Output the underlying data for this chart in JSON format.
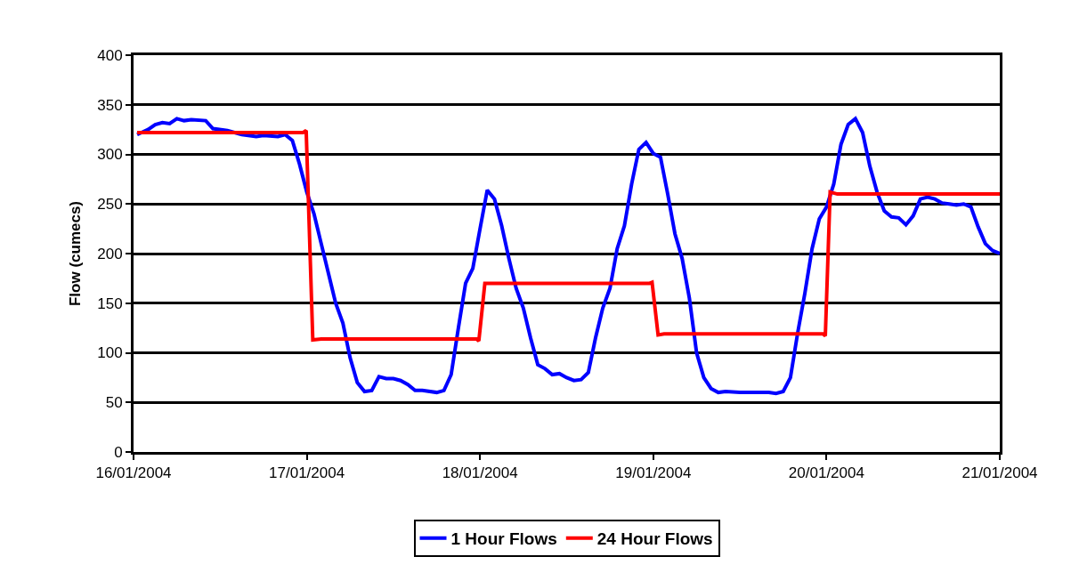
{
  "chart_data": {
    "type": "line",
    "ylabel": "Flow (cumecs)",
    "xlim": [
      "2004-01-16T00:00",
      "2004-01-21T00:00"
    ],
    "xticks": [
      {
        "value": "2004-01-16",
        "label": "16/01/2004"
      },
      {
        "value": "2004-01-17",
        "label": "17/01/2004"
      },
      {
        "value": "2004-01-18",
        "label": "18/01/2004"
      },
      {
        "value": "2004-01-19",
        "label": "19/01/2004"
      },
      {
        "value": "2004-01-20",
        "label": "20/01/2004"
      },
      {
        "value": "2004-01-21",
        "label": "21/01/2004"
      }
    ],
    "ylim": [
      0,
      400
    ],
    "yticks": [
      0,
      50,
      100,
      150,
      200,
      250,
      300,
      350,
      400
    ],
    "grid": "y",
    "legend": "bottom",
    "marker": "none",
    "line_style": "solid",
    "series": [
      {
        "name": "1 Hour Flows",
        "color": "#0000ff",
        "x": [
          "2004-01-16T00:30",
          "2004-01-16T02:00",
          "2004-01-16T03:00",
          "2004-01-16T04:00",
          "2004-01-16T05:00",
          "2004-01-16T06:00",
          "2004-01-16T07:00",
          "2004-01-16T08:00",
          "2004-01-16T10:00",
          "2004-01-16T11:00",
          "2004-01-16T13:00",
          "2004-01-16T15:00",
          "2004-01-16T17:00",
          "2004-01-16T18:00",
          "2004-01-16T20:00",
          "2004-01-16T21:00",
          "2004-01-16T22:00",
          "2004-01-16T23:00",
          "2004-01-17T00:00",
          "2004-01-17T01:00",
          "2004-01-17T02:00",
          "2004-01-17T03:00",
          "2004-01-17T04:00",
          "2004-01-17T05:00",
          "2004-01-17T06:00",
          "2004-01-17T07:00",
          "2004-01-17T08:00",
          "2004-01-17T09:00",
          "2004-01-17T10:00",
          "2004-01-17T11:00",
          "2004-01-17T12:00",
          "2004-01-17T13:00",
          "2004-01-17T14:00",
          "2004-01-17T15:00",
          "2004-01-17T16:00",
          "2004-01-17T18:00",
          "2004-01-17T19:00",
          "2004-01-17T20:00",
          "2004-01-17T21:00",
          "2004-01-17T22:00",
          "2004-01-17T23:00",
          "2004-01-18T00:00",
          "2004-01-18T01:00",
          "2004-01-18T02:00",
          "2004-01-18T03:00",
          "2004-01-18T04:00",
          "2004-01-18T05:00",
          "2004-01-18T06:00",
          "2004-01-18T07:00",
          "2004-01-18T08:00",
          "2004-01-18T09:00",
          "2004-01-18T10:00",
          "2004-01-18T11:00",
          "2004-01-18T12:00",
          "2004-01-18T13:00",
          "2004-01-18T14:00",
          "2004-01-18T15:00",
          "2004-01-18T16:00",
          "2004-01-18T17:00",
          "2004-01-18T18:00",
          "2004-01-18T19:00",
          "2004-01-18T20:00",
          "2004-01-18T21:00",
          "2004-01-18T22:00",
          "2004-01-18T23:00",
          "2004-01-19T00:00",
          "2004-01-19T01:00",
          "2004-01-19T02:00",
          "2004-01-19T03:00",
          "2004-01-19T04:00",
          "2004-01-19T05:00",
          "2004-01-19T06:00",
          "2004-01-19T07:00",
          "2004-01-19T08:00",
          "2004-01-19T09:00",
          "2004-01-19T10:00",
          "2004-01-19T12:00",
          "2004-01-19T14:00",
          "2004-01-19T16:00",
          "2004-01-19T17:00",
          "2004-01-19T18:00",
          "2004-01-19T19:00",
          "2004-01-19T20:00",
          "2004-01-19T21:00",
          "2004-01-19T22:00",
          "2004-01-19T23:00",
          "2004-01-20T00:00",
          "2004-01-20T01:00",
          "2004-01-20T02:00",
          "2004-01-20T03:00",
          "2004-01-20T04:00",
          "2004-01-20T05:00",
          "2004-01-20T06:00",
          "2004-01-20T07:00",
          "2004-01-20T08:00",
          "2004-01-20T09:00",
          "2004-01-20T10:00",
          "2004-01-20T11:00",
          "2004-01-20T12:00",
          "2004-01-20T13:00",
          "2004-01-20T14:00",
          "2004-01-20T15:00",
          "2004-01-20T16:00",
          "2004-01-20T17:00",
          "2004-01-20T18:00",
          "2004-01-20T19:00",
          "2004-01-20T20:00",
          "2004-01-20T21:00",
          "2004-01-20T22:00",
          "2004-01-20T23:00",
          "2004-01-21T00:00"
        ],
        "values": [
          320,
          325,
          330,
          332,
          331,
          336,
          334,
          335,
          334,
          326,
          324,
          320,
          318,
          319,
          318,
          320,
          314,
          290,
          262,
          240,
          210,
          180,
          150,
          130,
          95,
          70,
          61,
          62,
          76,
          74,
          74,
          72,
          68,
          62,
          62,
          60,
          62,
          78,
          125,
          170,
          185,
          225,
          264,
          255,
          228,
          195,
          165,
          145,
          115,
          88,
          84,
          78,
          79,
          75,
          72,
          73,
          80,
          115,
          145,
          165,
          205,
          228,
          270,
          305,
          312,
          301,
          297,
          260,
          220,
          195,
          155,
          100,
          75,
          64,
          60,
          61,
          60,
          60,
          60,
          59,
          61,
          75,
          120,
          160,
          205,
          235,
          247,
          270,
          310,
          330,
          336,
          322,
          288,
          262,
          243,
          237,
          236,
          229,
          238,
          255,
          257,
          255,
          251,
          250,
          249,
          250,
          247,
          227,
          210,
          203,
          200
        ]
      },
      {
        "name": "24 Hour Flows",
        "color": "#ff0000",
        "x": [
          "2004-01-16T00:30",
          "2004-01-16T23:30",
          "2004-01-16T23:55",
          "2004-01-17T00:50",
          "2004-01-17T02:00",
          "2004-01-17T23:30",
          "2004-01-17T23:50",
          "2004-01-18T00:40",
          "2004-01-18T01:30",
          "2004-01-18T23:30",
          "2004-01-18T23:50",
          "2004-01-19T00:40",
          "2004-01-19T01:30",
          "2004-01-19T23:30",
          "2004-01-19T23:50",
          "2004-01-20T00:30",
          "2004-01-20T01:30",
          "2004-01-21T00:00"
        ],
        "values": [
          322,
          322,
          324,
          113,
          114,
          114,
          112,
          170,
          170,
          170,
          171,
          118,
          119,
          119,
          117,
          262,
          260,
          260
        ]
      }
    ]
  }
}
